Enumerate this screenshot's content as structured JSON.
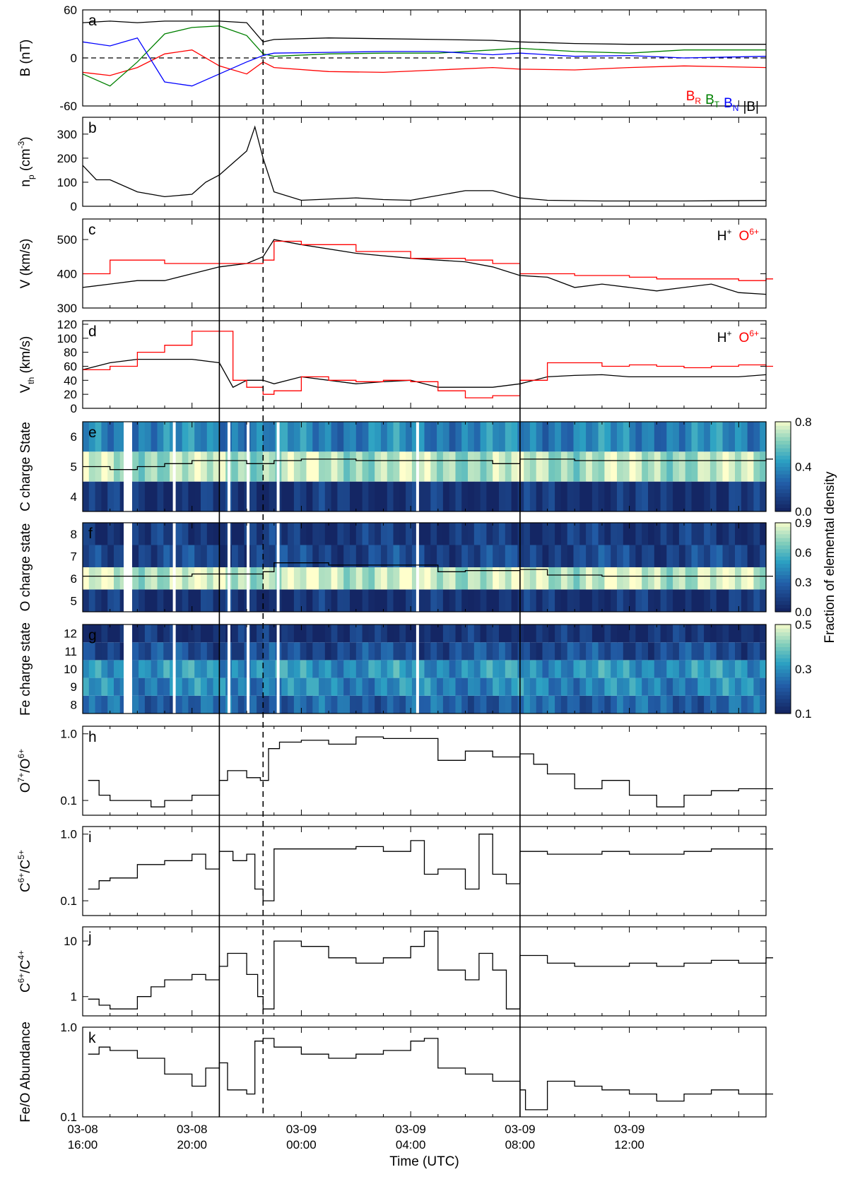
{
  "figure": {
    "x_tick_labels": [
      [
        "03-08",
        "16:00"
      ],
      [
        "03-08",
        "20:00"
      ],
      [
        "03-09",
        "00:00"
      ],
      [
        "03-09",
        "04:00"
      ],
      [
        "03-09",
        "08:00"
      ],
      [
        "03-09",
        "12:00"
      ]
    ],
    "x_axis_title": "Time (UTC)",
    "x_range_hours": [
      16,
      41
    ],
    "event_lines": {
      "solid": [
        21.0,
        32.0
      ],
      "dashed": [
        22.6
      ]
    },
    "colorbar_title": "Fraction of elemental density"
  },
  "chart_data": [
    {
      "panel": "a",
      "type": "line",
      "ylabel": "B (nT)",
      "ylim": [
        -60,
        60
      ],
      "yticks": [
        60,
        0,
        -60
      ],
      "zero_line": "dashed",
      "legend": [
        {
          "label": "B",
          "sub": "R",
          "color": "#ff0000"
        },
        {
          "label": "B",
          "sub": "T",
          "color": "#008000"
        },
        {
          "label": "B",
          "sub": "N",
          "color": "#0000ff"
        },
        {
          "label": "|B|",
          "sub": "",
          "color": "#000000"
        }
      ],
      "legend_position": "bottom-right",
      "series": [
        {
          "name": "|B|",
          "color": "#000000",
          "x": [
            16,
            17,
            18,
            19,
            20,
            21,
            22,
            22.6,
            23,
            25,
            27,
            29,
            31,
            32,
            34,
            36,
            38,
            41
          ],
          "y": [
            44,
            46,
            44,
            46,
            46,
            46,
            44,
            20,
            23,
            25,
            24,
            23,
            22,
            20,
            18,
            17,
            17,
            17
          ]
        },
        {
          "name": "BR",
          "color": "#ff0000",
          "x": [
            16,
            17,
            18,
            19,
            20,
            21,
            22,
            22.6,
            23,
            25,
            27,
            29,
            31,
            32,
            34,
            36,
            38,
            41
          ],
          "y": [
            -18,
            -22,
            -12,
            5,
            10,
            -10,
            -20,
            -5,
            -12,
            -17,
            -18,
            -15,
            -12,
            -14,
            -15,
            -12,
            -10,
            -12
          ]
        },
        {
          "name": "BT",
          "color": "#008000",
          "x": [
            16,
            17,
            18,
            19,
            20,
            21,
            22,
            22.6,
            23,
            25,
            27,
            29,
            31,
            32,
            34,
            36,
            38,
            41
          ],
          "y": [
            -20,
            -35,
            -5,
            30,
            38,
            40,
            28,
            5,
            2,
            5,
            6,
            6,
            10,
            12,
            8,
            6,
            10,
            10
          ]
        },
        {
          "name": "BN",
          "color": "#0000ff",
          "x": [
            16,
            17,
            18,
            19,
            20,
            21,
            22,
            22.6,
            23,
            25,
            27,
            29,
            31,
            32,
            34,
            36,
            38,
            41
          ],
          "y": [
            20,
            15,
            25,
            -30,
            -35,
            -20,
            -5,
            3,
            6,
            7,
            8,
            8,
            4,
            6,
            2,
            3,
            0,
            2
          ]
        }
      ]
    },
    {
      "panel": "b",
      "type": "line",
      "ylabel": "n",
      "ylabel_sub": "p",
      "ylabel_unit": "(cm",
      "ylabel_sup": "-3",
      "ylabel_tail": ")",
      "ylim": [
        0,
        370
      ],
      "yticks": [
        0,
        100,
        200,
        300
      ],
      "series": [
        {
          "name": "np",
          "color": "#000000",
          "x": [
            16,
            16.5,
            17,
            18,
            19,
            20,
            20.5,
            21,
            21.5,
            22,
            22.3,
            22.6,
            23,
            24,
            26,
            27,
            28,
            30,
            31,
            32,
            33,
            35,
            38,
            41
          ],
          "y": [
            170,
            110,
            110,
            60,
            40,
            50,
            100,
            130,
            180,
            230,
            330,
            200,
            60,
            25,
            35,
            28,
            25,
            65,
            65,
            35,
            25,
            22,
            22,
            24
          ]
        }
      ]
    },
    {
      "panel": "c",
      "type": "line",
      "ylabel": "V (km/s)",
      "ylim": [
        300,
        560
      ],
      "yticks": [
        300,
        400,
        500
      ],
      "legend": [
        "H+",
        "O6+"
      ],
      "legend_position": "top-right",
      "series": [
        {
          "name": "H+",
          "color": "#000000",
          "x": [
            16,
            17,
            18,
            19,
            20,
            21,
            22,
            22.6,
            23,
            24,
            26,
            28,
            30,
            31,
            32,
            33,
            34,
            35,
            36,
            37,
            38,
            39,
            40,
            41
          ],
          "y": [
            360,
            370,
            380,
            380,
            400,
            420,
            430,
            450,
            500,
            485,
            460,
            445,
            435,
            420,
            395,
            390,
            360,
            370,
            360,
            350,
            360,
            370,
            345,
            340
          ]
        },
        {
          "name": "O6+",
          "color": "#ff0000",
          "x": [
            16,
            17,
            18,
            19,
            20,
            21,
            22,
            22.6,
            23,
            24,
            26,
            28,
            30,
            31,
            32,
            33,
            34,
            35,
            36,
            37,
            38,
            39,
            40,
            41
          ],
          "y": [
            400,
            440,
            440,
            430,
            430,
            430,
            430,
            440,
            495,
            485,
            465,
            445,
            440,
            430,
            400,
            400,
            395,
            395,
            390,
            385,
            385,
            385,
            380,
            385
          ]
        }
      ]
    },
    {
      "panel": "d",
      "type": "line",
      "ylabel": "V",
      "ylabel_sub": "th",
      "ylabel_unit": "(km/s)",
      "ylim": [
        0,
        125
      ],
      "yticks": [
        0,
        20,
        40,
        60,
        80,
        100,
        120
      ],
      "legend": [
        "H+",
        "O6+"
      ],
      "legend_position": "top-right",
      "series": [
        {
          "name": "H+",
          "color": "#000000",
          "x": [
            16,
            17,
            18,
            19,
            20,
            21,
            21.5,
            22,
            22.6,
            23,
            24,
            25,
            26,
            27,
            28,
            29,
            30,
            31,
            32,
            33,
            34,
            35,
            36,
            37,
            38,
            39,
            40,
            41
          ],
          "y": [
            55,
            65,
            70,
            70,
            70,
            65,
            30,
            40,
            40,
            35,
            45,
            40,
            35,
            38,
            40,
            30,
            30,
            30,
            35,
            45,
            47,
            48,
            45,
            45,
            45,
            45,
            45,
            48
          ]
        },
        {
          "name": "O6+",
          "color": "#ff0000",
          "x": [
            16,
            17,
            18,
            19,
            20,
            21,
            21.5,
            22,
            22.6,
            23,
            24,
            25,
            26,
            27,
            28,
            29,
            30,
            31,
            32,
            33,
            34,
            35,
            36,
            37,
            38,
            39,
            40,
            41
          ],
          "y": [
            55,
            60,
            80,
            90,
            110,
            110,
            40,
            30,
            20,
            25,
            45,
            40,
            38,
            40,
            38,
            25,
            15,
            18,
            40,
            65,
            65,
            60,
            62,
            60,
            58,
            60,
            62,
            60
          ]
        }
      ]
    },
    {
      "panel": "e",
      "type": "heatmap",
      "ylabel": "C charge State",
      "rows": [
        4,
        5,
        6
      ],
      "ylim": [
        3.5,
        6.5
      ],
      "colorbar_range": [
        0.0,
        0.8
      ],
      "colorbar_ticks": [
        "0.0",
        "0.4",
        "0.8"
      ],
      "row_fraction": [
        {
          "charge": 6,
          "value": 0.35
        },
        {
          "charge": 5,
          "value": 0.68
        },
        {
          "charge": 4,
          "value": 0.05
        }
      ],
      "mean_charge": {
        "x": [
          16,
          17,
          18,
          19,
          20,
          21,
          22,
          23,
          24,
          26,
          28,
          30,
          31,
          32,
          34,
          36,
          38,
          41
        ],
        "y": [
          5.0,
          4.9,
          5.0,
          5.1,
          5.2,
          5.2,
          5.1,
          5.2,
          5.25,
          5.2,
          5.2,
          5.2,
          5.1,
          5.25,
          5.2,
          5.2,
          5.2,
          5.25
        ]
      }
    },
    {
      "panel": "f",
      "type": "heatmap",
      "ylabel": "O charge state",
      "rows": [
        5,
        6,
        7,
        8
      ],
      "ylim": [
        4.5,
        8.5
      ],
      "colorbar_range": [
        0.0,
        0.9
      ],
      "colorbar_ticks": [
        "0.0",
        "0.3",
        "0.6",
        "0.9"
      ],
      "row_fraction": [
        {
          "charge": 8,
          "value": 0.08
        },
        {
          "charge": 7,
          "value": 0.15
        },
        {
          "charge": 6,
          "value": 0.8
        },
        {
          "charge": 5,
          "value": 0.05
        }
      ],
      "mean_charge": {
        "x": [
          16,
          18,
          20,
          22,
          22.6,
          23,
          25,
          27,
          29,
          30,
          32,
          33,
          35,
          38,
          41
        ],
        "y": [
          6.1,
          6.1,
          6.2,
          6.2,
          6.3,
          6.7,
          6.6,
          6.6,
          6.3,
          6.35,
          6.4,
          6.15,
          6.1,
          6.1,
          6.1
        ]
      }
    },
    {
      "panel": "g",
      "type": "heatmap",
      "ylabel": "Fe charge state",
      "rows": [
        8,
        9,
        10,
        11,
        12
      ],
      "ylim": [
        7.5,
        12.5
      ],
      "colorbar_range": [
        0.1,
        0.5
      ],
      "colorbar_ticks": [
        "0.1",
        "0.3",
        "0.5"
      ],
      "row_fraction": [
        {
          "charge": 12,
          "value": 0.12
        },
        {
          "charge": 11,
          "value": 0.18
        },
        {
          "charge": 10,
          "value": 0.3
        },
        {
          "charge": 9,
          "value": 0.28
        },
        {
          "charge": 8,
          "value": 0.22
        }
      ]
    },
    {
      "panel": "h",
      "type": "line",
      "scale": "log",
      "ylabel": "O",
      "ylabel_sup1": "7+",
      "ylabel_mid": "/O",
      "ylabel_sup2": "6+",
      "ylim": [
        0.06,
        1.3
      ],
      "yticks": [
        "1.0",
        "0.1"
      ],
      "series": [
        {
          "name": "O7+/O6+",
          "color": "#000000",
          "x": [
            16.2,
            16.6,
            17,
            18,
            18.5,
            19,
            20,
            20.5,
            21,
            21.3,
            22,
            22.5,
            22.8,
            23.2,
            24,
            25,
            26,
            27,
            28,
            29,
            30,
            31,
            32,
            32.5,
            33,
            34,
            35,
            36,
            37,
            38,
            39,
            40,
            41
          ],
          "y": [
            0.2,
            0.12,
            0.1,
            0.1,
            0.08,
            0.1,
            0.12,
            0.12,
            0.2,
            0.28,
            0.22,
            0.2,
            0.6,
            0.75,
            0.8,
            0.7,
            0.9,
            0.85,
            0.85,
            0.4,
            0.55,
            0.45,
            0.5,
            0.35,
            0.25,
            0.15,
            0.2,
            0.12,
            0.08,
            0.12,
            0.14,
            0.15,
            0.15
          ]
        }
      ]
    },
    {
      "panel": "i",
      "type": "line",
      "scale": "log",
      "ylabel": "C",
      "ylabel_sup1": "6+",
      "ylabel_mid": "/C",
      "ylabel_sup2": "5+",
      "ylim": [
        0.06,
        1.3
      ],
      "yticks": [
        "1.0",
        "0.1"
      ],
      "series": [
        {
          "name": "C6+/C5+",
          "color": "#000000",
          "x": [
            16.2,
            16.6,
            17,
            18,
            19,
            20,
            20.5,
            21,
            21.5,
            22,
            22.3,
            22.6,
            23,
            24,
            25,
            26,
            27,
            28,
            28.5,
            29,
            30,
            30.5,
            31,
            31.5,
            32,
            33,
            34,
            35,
            36,
            37,
            38,
            39,
            40,
            41
          ],
          "y": [
            0.15,
            0.2,
            0.22,
            0.35,
            0.4,
            0.5,
            0.3,
            0.55,
            0.4,
            0.5,
            0.15,
            0.1,
            0.6,
            0.6,
            0.6,
            0.65,
            0.55,
            0.8,
            0.25,
            0.3,
            0.15,
            1.0,
            0.25,
            0.18,
            0.55,
            0.5,
            0.5,
            0.55,
            0.5,
            0.5,
            0.55,
            0.6,
            0.6,
            0.6
          ]
        }
      ]
    },
    {
      "panel": "j",
      "type": "line",
      "scale": "log",
      "ylabel": "C",
      "ylabel_sup1": "6+",
      "ylabel_mid": "/C",
      "ylabel_sup2": "4+",
      "ylim": [
        0.45,
        18
      ],
      "yticks": [
        "10",
        "1"
      ],
      "series": [
        {
          "name": "C6+/C4+",
          "color": "#000000",
          "x": [
            16.2,
            16.6,
            17,
            18,
            18.5,
            19,
            20,
            20.5,
            21,
            21.3,
            22,
            22.4,
            22.6,
            23,
            24,
            25,
            26,
            27,
            28,
            28.5,
            29,
            30,
            30.5,
            31,
            31.5,
            32,
            33,
            34,
            35,
            36,
            37,
            38,
            39,
            40,
            41
          ],
          "y": [
            0.9,
            0.7,
            0.6,
            1.0,
            1.5,
            2.0,
            2.5,
            2.0,
            3.5,
            6.0,
            2.5,
            1.0,
            0.6,
            10,
            8,
            5,
            4,
            5,
            8,
            15,
            3,
            2,
            6,
            3,
            0.6,
            5.5,
            4,
            3.5,
            3.5,
            4,
            3.5,
            4,
            4.5,
            4,
            5
          ]
        }
      ]
    },
    {
      "panel": "k",
      "type": "line",
      "scale": "log",
      "ylabel": "Fe/O Abundance",
      "ylim": [
        0.1,
        1.0
      ],
      "yticks": [
        "1.0",
        "0.1"
      ],
      "series": [
        {
          "name": "Fe/O",
          "color": "#000000",
          "x": [
            16.2,
            16.6,
            17,
            18,
            19,
            20,
            20.5,
            21,
            21.3,
            22,
            22.3,
            22.6,
            23,
            24,
            25,
            26,
            27,
            28,
            28.5,
            29,
            30,
            31,
            32,
            32.2,
            33,
            34,
            35,
            36,
            37,
            38,
            39,
            40,
            41
          ],
          "y": [
            0.5,
            0.6,
            0.55,
            0.45,
            0.3,
            0.22,
            0.35,
            0.4,
            0.2,
            0.18,
            0.7,
            0.75,
            0.6,
            0.5,
            0.45,
            0.5,
            0.55,
            0.7,
            0.75,
            0.35,
            0.3,
            0.25,
            0.2,
            0.12,
            0.25,
            0.22,
            0.2,
            0.18,
            0.15,
            0.18,
            0.2,
            0.18,
            0.18
          ]
        }
      ]
    }
  ]
}
